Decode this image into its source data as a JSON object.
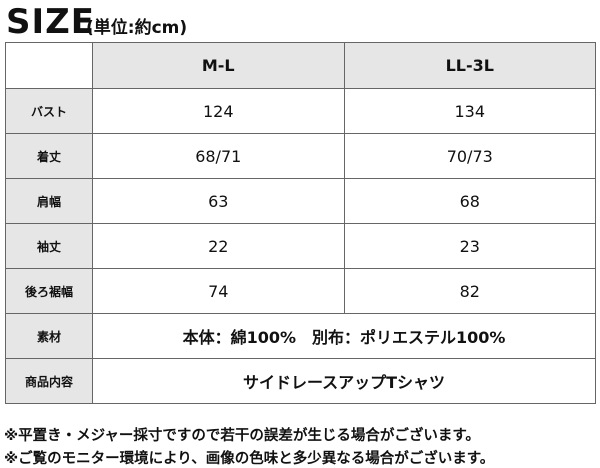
{
  "header": {
    "title": "SIZE",
    "unit": "(単位:約cm)"
  },
  "table": {
    "columns": [
      "M-L",
      "LL-3L"
    ],
    "rows": [
      {
        "label": "バスト",
        "values": [
          124,
          134
        ]
      },
      {
        "label": "着丈",
        "values": [
          "68/71",
          "70/73"
        ]
      },
      {
        "label": "肩幅",
        "values": [
          63,
          68
        ]
      },
      {
        "label": "袖丈",
        "values": [
          22,
          23
        ]
      },
      {
        "label": "後ろ裾幅",
        "values": [
          74,
          82
        ]
      }
    ],
    "merged_rows": [
      {
        "label": "素材",
        "value": "本体：綿100%　別布：ポリエステル100%"
      },
      {
        "label": "商品内容",
        "value": "サイドレースアップTシャツ"
      }
    ]
  },
  "notes": [
    "※平置き・メジャー採寸ですので若干の誤差が生じる場合がございます。",
    "※ご覧のモニター環境により、画像の色味と多少異なる場合がございます。"
  ]
}
